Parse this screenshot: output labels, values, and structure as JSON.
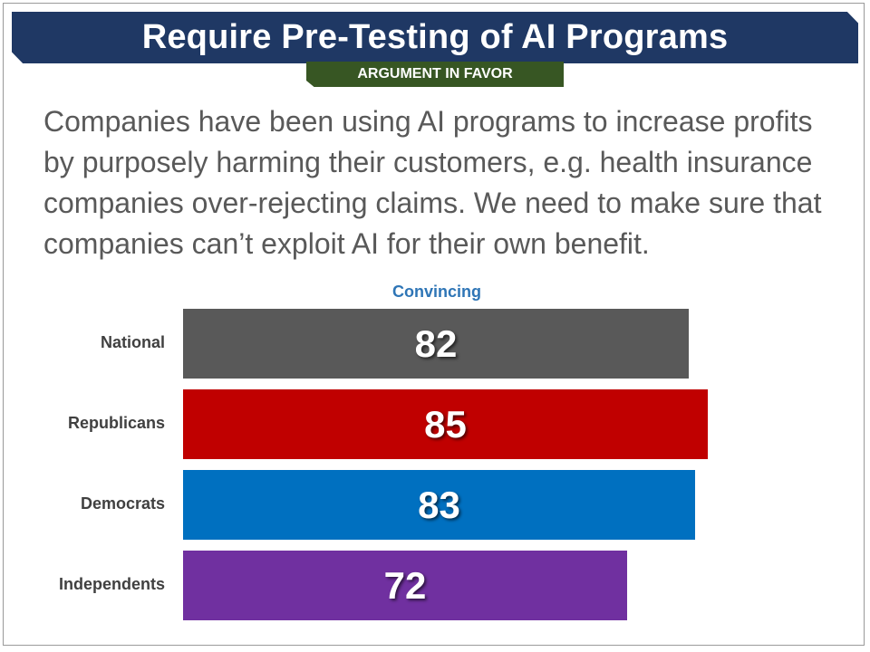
{
  "header": {
    "title": "Require Pre-Testing of AI Programs",
    "tag": "ARGUMENT IN FAVOR"
  },
  "argument_text": "Companies have been using AI programs to increase profits by purposely harming their customers, e.g. health insurance companies over-rejecting claims. We need to make sure that companies can’t exploit AI for their own benefit.",
  "chart_data": {
    "type": "bar",
    "orientation": "horizontal",
    "title": "Convincing",
    "categories": [
      "National",
      "Republicans",
      "Democrats",
      "Independents"
    ],
    "values": [
      82,
      85,
      83,
      72
    ],
    "value_labels": [
      "82",
      "85",
      "83",
      "72"
    ],
    "colors": [
      "#595959",
      "#c00000",
      "#0070c0",
      "#7030a0"
    ],
    "xlim": [
      0,
      100
    ],
    "grid": false,
    "legend": "none"
  }
}
